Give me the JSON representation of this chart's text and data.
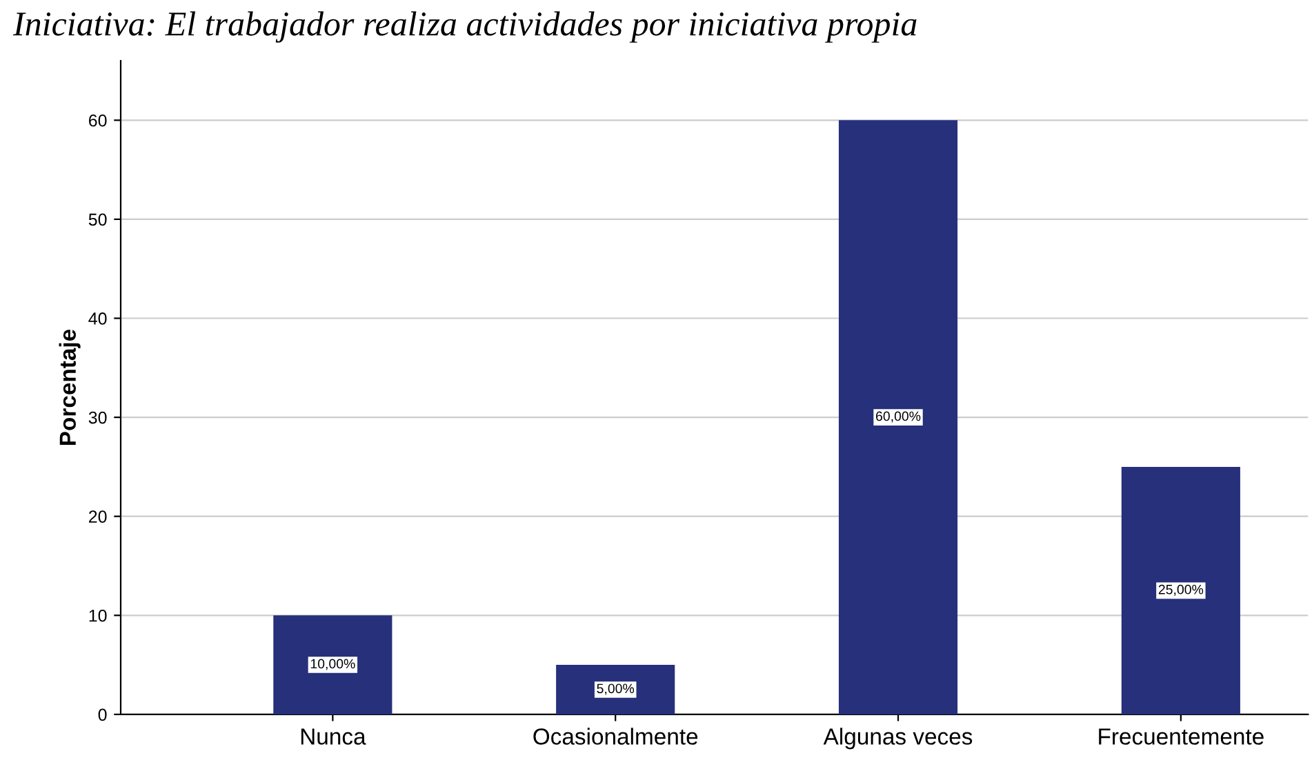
{
  "chart_data": {
    "type": "bar",
    "title": "Iniciativa: El trabajador realiza actividades por iniciativa propia",
    "ylabel": "Porcentaje",
    "categories": [
      "Nunca",
      "Ocasionalmente",
      "Algunas veces",
      "Frecuentemente"
    ],
    "values": [
      10,
      5,
      60,
      25
    ],
    "value_labels": [
      "10,00%",
      "5,00%",
      "60,00%",
      "25,00%"
    ],
    "color": "#27307a",
    "ylim": [
      0,
      66
    ],
    "yticks": [
      0,
      10,
      20,
      30,
      40,
      50,
      60
    ],
    "grid": "y"
  }
}
